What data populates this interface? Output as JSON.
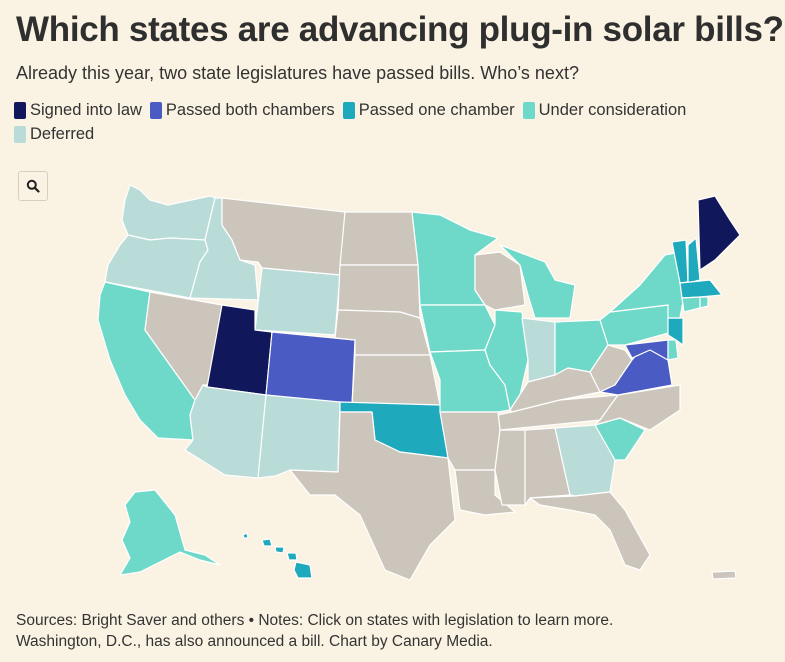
{
  "title": "Which states are advancing plug-in solar bills?",
  "subtitle": "Already this year, two state legislatures have passed bills. Who’s next?",
  "legend": [
    {
      "label": "Signed into law",
      "color": "#10175a"
    },
    {
      "label": "Passed both chambers",
      "color": "#4a5bc4"
    },
    {
      "label": "Passed one chamber",
      "color": "#1ea9bd"
    },
    {
      "label": "Under consideration",
      "color": "#6fd9c9"
    },
    {
      "label": "Deferred",
      "color": "#b9dcd8"
    }
  ],
  "colors": {
    "background": "#faf3e3",
    "no_activity": "#ccc5bb",
    "signed": "#10175a",
    "passed_both": "#4a5bc4",
    "passed_one": "#1ea9bd",
    "under_consideration": "#6fd9c9",
    "deferred": "#b9dcd8"
  },
  "zoom": {
    "icon": "search-icon"
  },
  "map": {
    "signed": [
      "Utah",
      "Maine"
    ],
    "passed_both": [
      "Colorado",
      "Virginia",
      "Maryland"
    ],
    "passed_one": [
      "Oklahoma",
      "Vermont",
      "New Hampshire",
      "Massachusetts",
      "New Jersey",
      "Hawaii"
    ],
    "under_consideration": [
      "California",
      "Minnesota",
      "Iowa",
      "Missouri",
      "Illinois",
      "Michigan",
      "Ohio",
      "Pennsylvania",
      "New York",
      "Connecticut",
      "Rhode Island",
      "Delaware",
      "South Carolina",
      "Alaska"
    ],
    "deferred": [
      "Washington",
      "Oregon",
      "Idaho",
      "Wyoming",
      "Arizona",
      "New Mexico",
      "Indiana",
      "Georgia"
    ]
  },
  "footer": {
    "line1": "Sources: Bright Saver and others • Notes: Click on states with legislation to learn more.",
    "line2": "Washington, D.C., has also announced a bill. Chart by Canary Media."
  }
}
